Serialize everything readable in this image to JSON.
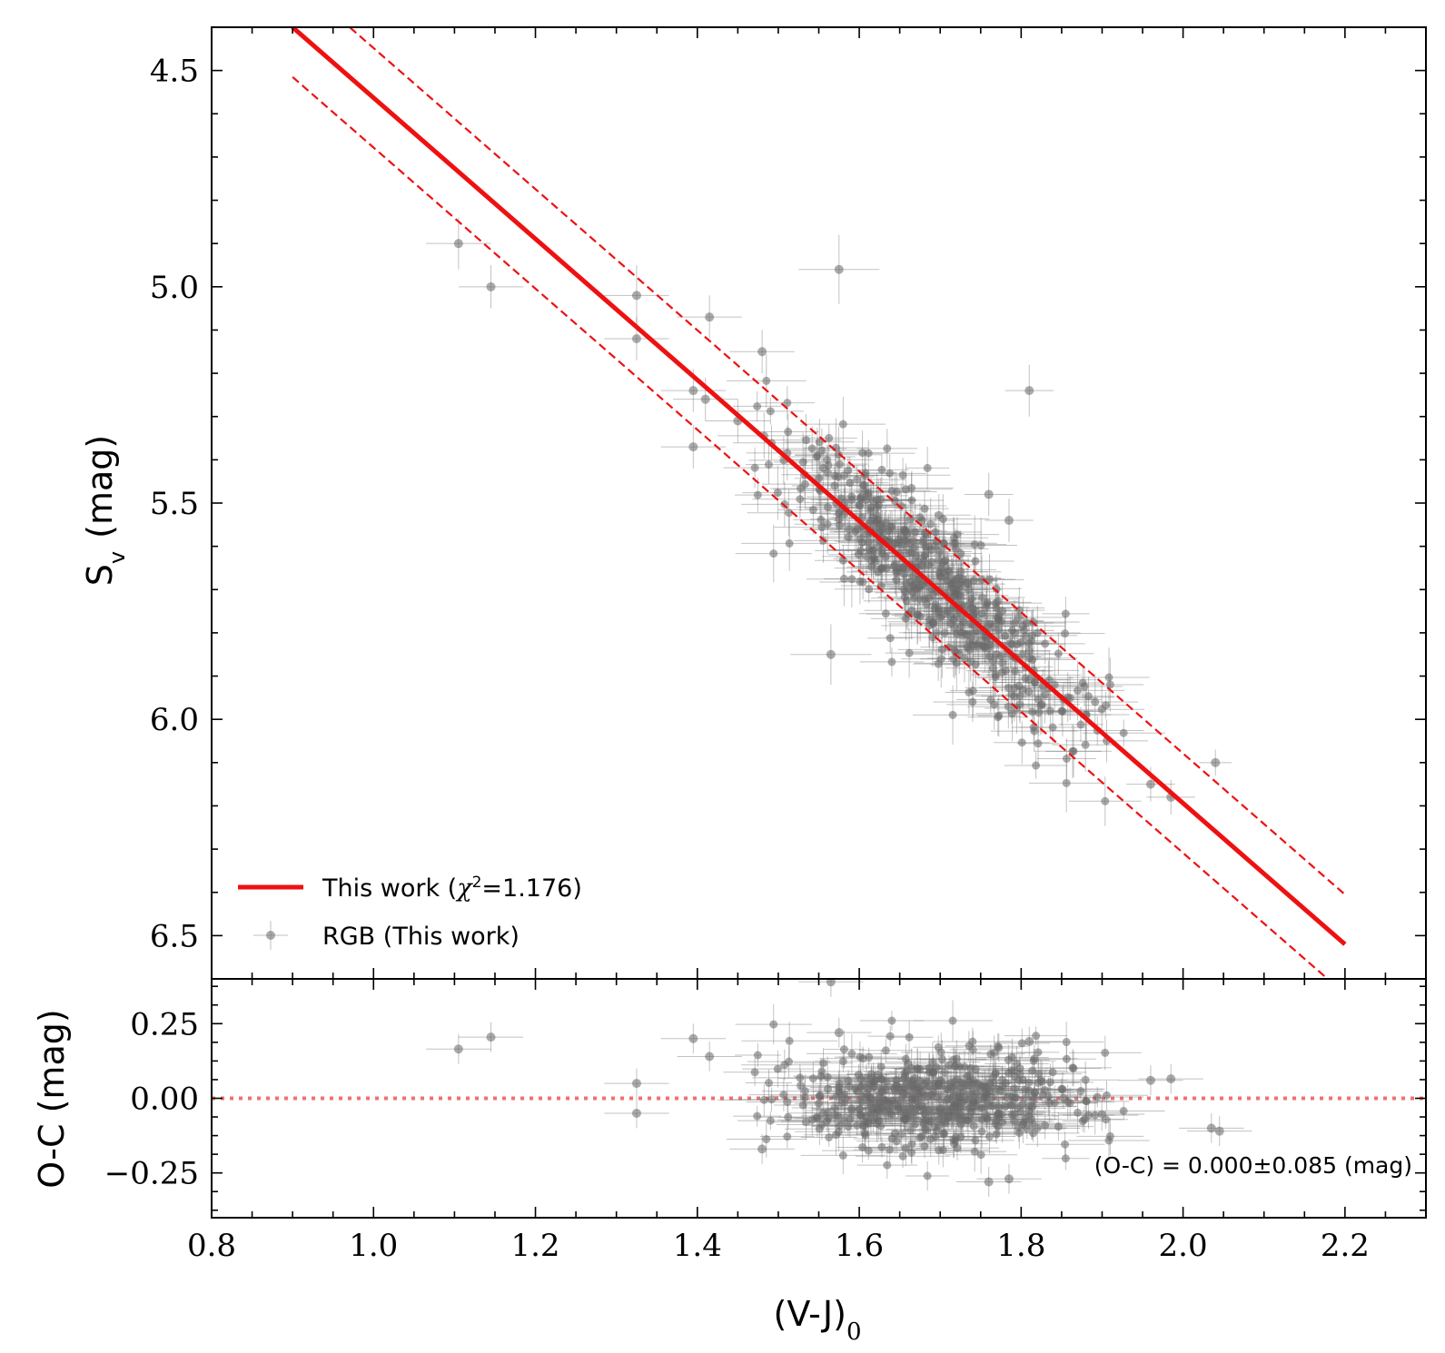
{
  "chart_data": [
    {
      "type": "scatter",
      "panel": "main",
      "xlabel": "",
      "ylabel": "S",
      "ylabel_sub": "v",
      "ylabel_unit": "(mag)",
      "xlim": [
        0.8,
        2.3
      ],
      "ylim": [
        6.6,
        4.4
      ],
      "y_inverted": true,
      "xticks": [
        0.8,
        1.0,
        1.2,
        1.4,
        1.6,
        1.8,
        2.0,
        2.2
      ],
      "yticks": [
        "4.5",
        "5.0",
        "5.5",
        "6.0",
        "6.5"
      ],
      "fit": {
        "name": "This work",
        "chi2_label": "χ",
        "chi2_sup": "2",
        "chi2_value": "=1.176)",
        "prefix": "This work (",
        "x": [
          0.9,
          2.2
        ],
        "y": [
          4.4,
          6.52
        ],
        "band_offset": 0.115,
        "color": "#ee1111"
      },
      "series": [
        {
          "name": "RGB (This work)",
          "color": "#555555",
          "points": [
            {
              "x": 1.105,
              "y": 4.9,
              "xerr": 0.04,
              "yerr": 0.06
            },
            {
              "x": 1.145,
              "y": 5.0,
              "xerr": 0.04,
              "yerr": 0.05
            },
            {
              "x": 1.325,
              "y": 5.02,
              "xerr": 0.04,
              "yerr": 0.07
            },
            {
              "x": 1.325,
              "y": 5.12,
              "xerr": 0.04,
              "yerr": 0.05
            },
            {
              "x": 1.415,
              "y": 5.07,
              "xerr": 0.04,
              "yerr": 0.05
            },
            {
              "x": 1.48,
              "y": 5.15,
              "xerr": 0.04,
              "yerr": 0.05
            },
            {
              "x": 1.395,
              "y": 5.24,
              "xerr": 0.04,
              "yerr": 0.05
            },
            {
              "x": 1.41,
              "y": 5.26,
              "xerr": 0.04,
              "yerr": 0.05
            },
            {
              "x": 1.575,
              "y": 4.96,
              "xerr": 0.05,
              "yerr": 0.08
            },
            {
              "x": 1.81,
              "y": 5.24,
              "xerr": 0.03,
              "yerr": 0.06
            },
            {
              "x": 1.565,
              "y": 5.85,
              "xerr": 0.05,
              "yerr": 0.07
            },
            {
              "x": 2.04,
              "y": 6.1,
              "xerr": 0.02,
              "yerr": 0.03
            },
            {
              "x": 1.96,
              "y": 6.15,
              "xerr": 0.03,
              "yerr": 0.04
            },
            {
              "x": 1.985,
              "y": 6.18,
              "xerr": 0.03,
              "yerr": 0.04
            },
            {
              "x": 1.76,
              "y": 5.48,
              "xerr": 0.03,
              "yerr": 0.05
            },
            {
              "x": 1.785,
              "y": 5.54,
              "xerr": 0.03,
              "yerr": 0.05
            },
            {
              "x": 1.395,
              "y": 5.37,
              "xerr": 0.04,
              "yerr": 0.05
            },
            {
              "x": 1.45,
              "y": 5.31,
              "xerr": 0.04,
              "yerr": 0.05
            }
          ]
        }
      ],
      "cloud": {
        "count": 520,
        "x_range": [
          1.47,
          1.93
        ],
        "scatter_mag": 0.085,
        "seed": 7
      },
      "legend": {
        "position": "lower-left"
      }
    },
    {
      "type": "scatter",
      "panel": "residual",
      "xlabel": "(V-J)",
      "xlabel_sub": "0",
      "ylabel": "O-C (mag)",
      "xlim": [
        0.8,
        2.3
      ],
      "ylim": [
        -0.4,
        0.4
      ],
      "xticks": [
        "0.8",
        "1.0",
        "1.2",
        "1.4",
        "1.6",
        "1.8",
        "2.0",
        "2.2"
      ],
      "yticks": [
        "0.25",
        "0.00",
        "−0.25"
      ],
      "ytick_values": [
        0.25,
        0.0,
        -0.25
      ],
      "zero_line_color": "#f07070",
      "annotation": "(O-C) = 0.000±0.085 (mag)",
      "points": [
        {
          "x": 1.105,
          "y": 0.165
        },
        {
          "x": 1.145,
          "y": 0.205
        },
        {
          "x": 1.325,
          "y": 0.05
        },
        {
          "x": 1.325,
          "y": -0.05
        },
        {
          "x": 1.395,
          "y": 0.2
        },
        {
          "x": 1.415,
          "y": 0.14
        },
        {
          "x": 1.48,
          "y": -0.17
        },
        {
          "x": 1.565,
          "y": 0.39
        },
        {
          "x": 1.575,
          "y": 0.22
        },
        {
          "x": 1.81,
          "y": 0.19
        },
        {
          "x": 1.76,
          "y": -0.28
        },
        {
          "x": 1.785,
          "y": -0.27
        },
        {
          "x": 1.96,
          "y": 0.06
        },
        {
          "x": 1.985,
          "y": 0.065
        },
        {
          "x": 2.035,
          "y": -0.1
        },
        {
          "x": 2.045,
          "y": -0.11
        }
      ]
    }
  ]
}
